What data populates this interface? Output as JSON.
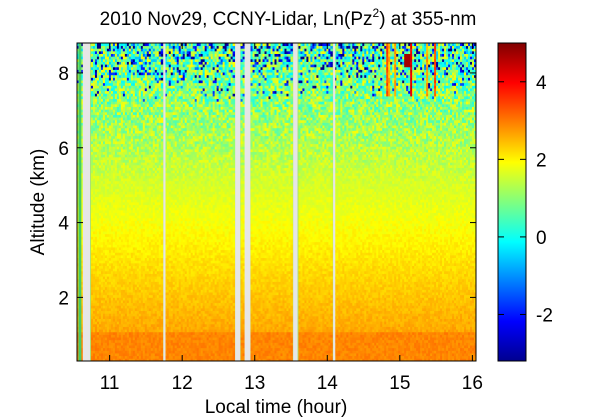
{
  "chart_data": {
    "type": "heatmap",
    "title": {
      "main": "2010 Nov29, CCNY-Lidar, Ln(Pz",
      "sup": "2",
      "tail": ") at 355-nm"
    },
    "xlabel": "Local time (hour)",
    "ylabel": "Altitude (km)",
    "xlim": [
      10.55,
      16.05
    ],
    "ylim": [
      0.3,
      8.8
    ],
    "xticks": [
      11,
      12,
      13,
      14,
      15,
      16
    ],
    "yticks": [
      2,
      4,
      6,
      8
    ],
    "colorbar": {
      "range": [
        -3.2,
        5
      ],
      "ticks": [
        -2,
        0,
        2,
        4
      ],
      "colormap": "jet"
    },
    "data_gaps_hours": [
      [
        10.57,
        10.61
      ],
      [
        10.63,
        10.73
      ],
      [
        11.74,
        11.77
      ],
      [
        12.73,
        12.8
      ],
      [
        12.86,
        12.94
      ],
      [
        13.53,
        13.59
      ],
      [
        14.08,
        14.11
      ]
    ],
    "field_description": {
      "near_surface_band_km": [
        0.3,
        1.1
      ],
      "near_surface_value": 2.9,
      "mid_layer_value_at_2km": 2.4,
      "value_at_8km": 0.8,
      "cloud_plumes_hours": [
        14.8,
        15.6
      ],
      "cloud_plumes_altitude_km": [
        7.4,
        8.8
      ],
      "cloud_peak_value": 4.7
    }
  }
}
